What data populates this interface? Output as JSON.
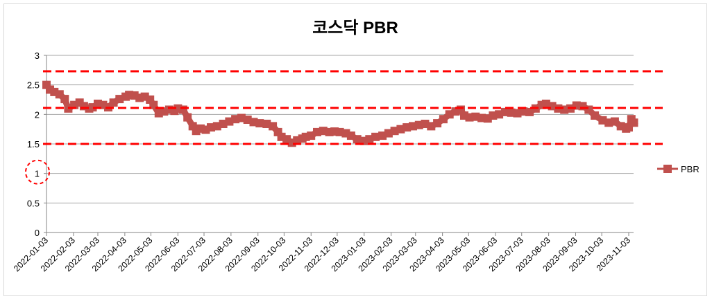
{
  "chart_data": {
    "type": "line",
    "title": "코스닥 PBR",
    "xlabel": "",
    "ylabel": "",
    "ylim": [
      0,
      3
    ],
    "yticks": [
      "0",
      "0.5",
      "1",
      "1.5",
      "2",
      "2.5",
      "3"
    ],
    "categories": [
      "2022-01-03",
      "2022-02-03",
      "2022-03-03",
      "2022-04-03",
      "2022-05-03",
      "2022-06-03",
      "2022-07-03",
      "2022-08-03",
      "2022-09-03",
      "2022-10-03",
      "2022-11-03",
      "2022-12-03",
      "2023-01-03",
      "2023-02-03",
      "2023-03-03",
      "2023-04-03",
      "2023-05-03",
      "2023-06-03",
      "2023-07-03",
      "2023-08-03",
      "2023-09-03",
      "2023-10-03",
      "2023-11-03"
    ],
    "x_end": "2023-11-03",
    "grid": true,
    "legend": {
      "position": "right",
      "entries": [
        "PBR"
      ]
    },
    "series": [
      {
        "name": "PBR",
        "color": "#c0504d",
        "points": [
          [
            "2022-01-03",
            2.5
          ],
          [
            "2022-01-07",
            2.42
          ],
          [
            "2022-01-12",
            2.38
          ],
          [
            "2022-01-18",
            2.34
          ],
          [
            "2022-01-24",
            2.26
          ],
          [
            "2022-01-28",
            2.1
          ],
          [
            "2022-02-04",
            2.16
          ],
          [
            "2022-02-10",
            2.2
          ],
          [
            "2022-02-15",
            2.14
          ],
          [
            "2022-02-21",
            2.1
          ],
          [
            "2022-02-25",
            2.12
          ],
          [
            "2022-03-03",
            2.18
          ],
          [
            "2022-03-09",
            2.16
          ],
          [
            "2022-03-15",
            2.12
          ],
          [
            "2022-03-21",
            2.2
          ],
          [
            "2022-03-28",
            2.26
          ],
          [
            "2022-04-04",
            2.3
          ],
          [
            "2022-04-08",
            2.33
          ],
          [
            "2022-04-14",
            2.32
          ],
          [
            "2022-04-20",
            2.28
          ],
          [
            "2022-04-26",
            2.3
          ],
          [
            "2022-05-02",
            2.25
          ],
          [
            "2022-05-06",
            2.16
          ],
          [
            "2022-05-12",
            2.02
          ],
          [
            "2022-05-18",
            2.05
          ],
          [
            "2022-05-24",
            2.08
          ],
          [
            "2022-05-30",
            2.06
          ],
          [
            "2022-06-03",
            2.1
          ],
          [
            "2022-06-09",
            2.08
          ],
          [
            "2022-06-14",
            1.95
          ],
          [
            "2022-06-20",
            1.8
          ],
          [
            "2022-06-24",
            1.72
          ],
          [
            "2022-06-29",
            1.76
          ],
          [
            "2022-07-05",
            1.74
          ],
          [
            "2022-07-11",
            1.78
          ],
          [
            "2022-07-18",
            1.8
          ],
          [
            "2022-07-25",
            1.84
          ],
          [
            "2022-08-01",
            1.88
          ],
          [
            "2022-08-08",
            1.92
          ],
          [
            "2022-08-15",
            1.94
          ],
          [
            "2022-08-22",
            1.91
          ],
          [
            "2022-08-29",
            1.87
          ],
          [
            "2022-09-05",
            1.85
          ],
          [
            "2022-09-13",
            1.84
          ],
          [
            "2022-09-20",
            1.8
          ],
          [
            "2022-09-26",
            1.7
          ],
          [
            "2022-09-30",
            1.62
          ],
          [
            "2022-10-06",
            1.58
          ],
          [
            "2022-10-12",
            1.52
          ],
          [
            "2022-10-18",
            1.56
          ],
          [
            "2022-10-24",
            1.59
          ],
          [
            "2022-10-28",
            1.62
          ],
          [
            "2022-11-03",
            1.64
          ],
          [
            "2022-11-10",
            1.7
          ],
          [
            "2022-11-17",
            1.72
          ],
          [
            "2022-11-24",
            1.7
          ],
          [
            "2022-11-30",
            1.71
          ],
          [
            "2022-12-06",
            1.7
          ],
          [
            "2022-12-13",
            1.68
          ],
          [
            "2022-12-19",
            1.64
          ],
          [
            "2022-12-26",
            1.58
          ],
          [
            "2023-01-03",
            1.55
          ],
          [
            "2023-01-09",
            1.58
          ],
          [
            "2023-01-16",
            1.62
          ],
          [
            "2023-01-24",
            1.64
          ],
          [
            "2023-01-31",
            1.68
          ],
          [
            "2023-02-07",
            1.72
          ],
          [
            "2023-02-14",
            1.75
          ],
          [
            "2023-02-21",
            1.78
          ],
          [
            "2023-02-28",
            1.8
          ],
          [
            "2023-03-07",
            1.82
          ],
          [
            "2023-03-14",
            1.84
          ],
          [
            "2023-03-21",
            1.8
          ],
          [
            "2023-03-28",
            1.85
          ],
          [
            "2023-04-04",
            1.92
          ],
          [
            "2023-04-11",
            2.0
          ],
          [
            "2023-04-18",
            2.05
          ],
          [
            "2023-04-24",
            2.08
          ],
          [
            "2023-04-28",
            1.98
          ],
          [
            "2023-05-04",
            1.95
          ],
          [
            "2023-05-11",
            1.96
          ],
          [
            "2023-05-18",
            1.94
          ],
          [
            "2023-05-25",
            1.93
          ],
          [
            "2023-05-31",
            1.98
          ],
          [
            "2023-06-07",
            2.0
          ],
          [
            "2023-06-14",
            2.04
          ],
          [
            "2023-06-21",
            2.03
          ],
          [
            "2023-06-28",
            2.02
          ],
          [
            "2023-07-05",
            2.05
          ],
          [
            "2023-07-12",
            2.04
          ],
          [
            "2023-07-19",
            2.1
          ],
          [
            "2023-07-26",
            2.16
          ],
          [
            "2023-07-31",
            2.18
          ],
          [
            "2023-08-07",
            2.14
          ],
          [
            "2023-08-14",
            2.1
          ],
          [
            "2023-08-21",
            2.08
          ],
          [
            "2023-08-28",
            2.1
          ],
          [
            "2023-09-04",
            2.15
          ],
          [
            "2023-09-11",
            2.14
          ],
          [
            "2023-09-18",
            2.08
          ],
          [
            "2023-09-25",
            1.98
          ],
          [
            "2023-10-04",
            1.9
          ],
          [
            "2023-10-11",
            1.86
          ],
          [
            "2023-10-18",
            1.88
          ],
          [
            "2023-10-25",
            1.8
          ],
          [
            "2023-10-31",
            1.76
          ],
          [
            "2023-11-03",
            1.78
          ],
          [
            "2023-11-06",
            1.92
          ],
          [
            "2023-11-09",
            1.86
          ]
        ]
      }
    ],
    "annotations": [
      {
        "type": "hline",
        "y": 2.73,
        "style": "dashed",
        "color": "#ff0000"
      },
      {
        "type": "hline",
        "y": 2.11,
        "style": "dashed",
        "color": "#ff0000"
      },
      {
        "type": "hline",
        "y": 1.5,
        "style": "dashed",
        "color": "#ff0000"
      },
      {
        "type": "circle",
        "target_tick": "1",
        "style": "dashed",
        "color": "#ff0000"
      }
    ]
  }
}
